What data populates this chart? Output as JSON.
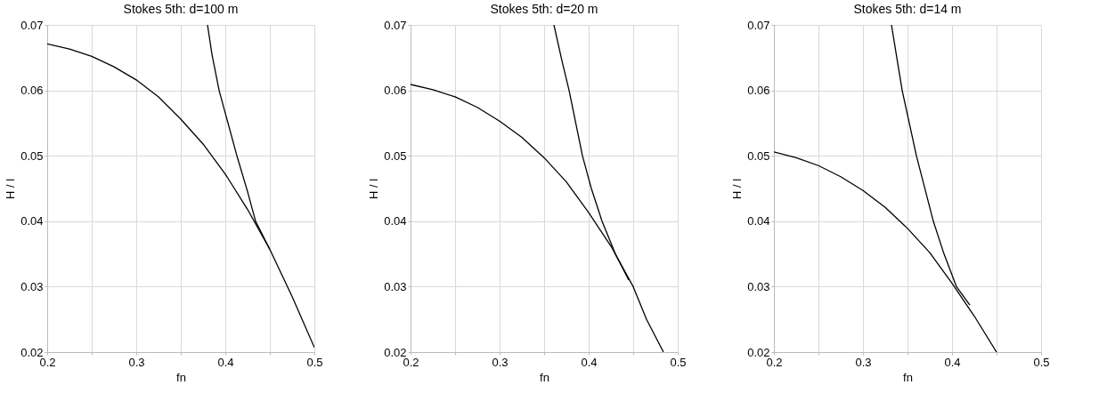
{
  "chart_data": [
    {
      "type": "line",
      "title": "Stokes 5th:  d=100 m",
      "xlabel": "fn",
      "ylabel": "H / l",
      "xlim": [
        0.2,
        0.5
      ],
      "ylim": [
        0.02,
        0.07
      ],
      "xticks": [
        0.2,
        {
          "value": 0.25,
          "label": null
        },
        0.3,
        {
          "value": 0.35,
          "label": null
        },
        0.4,
        {
          "value": 0.45,
          "label": null
        },
        0.5
      ],
      "yticks": [
        0.02,
        0.03,
        0.04,
        0.05,
        0.06,
        0.07
      ],
      "grid": true,
      "legend": false,
      "marker": "none",
      "line_style": "solid",
      "series": [
        {
          "color": "#000000",
          "x": [
            0.2,
            0.225,
            0.25,
            0.275,
            0.3,
            0.325,
            0.35,
            0.375,
            0.4,
            0.425,
            0.45,
            0.475,
            0.5
          ],
          "values": [
            0.0671,
            0.0663,
            0.0652,
            0.0636,
            0.0616,
            0.059,
            0.0556,
            0.0518,
            0.0472,
            0.0418,
            0.0357,
            0.0285,
            0.0207
          ]
        },
        {
          "color": "#000000",
          "x": [
            0.38,
            0.385,
            0.393,
            0.4,
            0.413,
            0.425,
            0.434,
            0.45
          ],
          "values": [
            0.07,
            0.0655,
            0.06,
            0.0565,
            0.05,
            0.0445,
            0.04,
            0.0357
          ]
        }
      ]
    },
    {
      "type": "line",
      "title": "Stokes 5th:  d=20 m",
      "xlabel": "fn",
      "ylabel": "H / l",
      "xlim": [
        0.2,
        0.5
      ],
      "ylim": [
        0.02,
        0.07
      ],
      "xticks": [
        0.2,
        {
          "value": 0.25,
          "label": null
        },
        0.3,
        {
          "value": 0.35,
          "label": null
        },
        0.4,
        {
          "value": 0.45,
          "label": null
        },
        0.5
      ],
      "yticks": [
        0.02,
        0.03,
        0.04,
        0.05,
        0.06,
        0.07
      ],
      "grid": true,
      "legend": false,
      "marker": "none",
      "line_style": "solid",
      "series": [
        {
          "color": "#000000",
          "x": [
            0.2,
            0.225,
            0.25,
            0.275,
            0.3,
            0.325,
            0.35,
            0.375,
            0.4,
            0.425,
            0.45,
            0.465,
            0.484
          ],
          "values": [
            0.0609,
            0.0601,
            0.059,
            0.0574,
            0.0553,
            0.0528,
            0.0497,
            0.046,
            0.0413,
            0.0362,
            0.03,
            0.025,
            0.02
          ]
        },
        {
          "color": "#000000",
          "x": [
            0.361,
            0.37,
            0.378,
            0.393,
            0.403,
            0.415,
            0.43,
            0.445
          ],
          "values": [
            0.07,
            0.0645,
            0.06,
            0.05,
            0.045,
            0.04,
            0.035,
            0.031
          ]
        }
      ]
    },
    {
      "type": "line",
      "title": "Stokes 5th:  d=14 m",
      "xlabel": "fn",
      "ylabel": "H / l",
      "xlim": [
        0.2,
        0.5
      ],
      "ylim": [
        0.02,
        0.07
      ],
      "xticks": [
        0.2,
        {
          "value": 0.25,
          "label": null
        },
        0.3,
        {
          "value": 0.35,
          "label": null
        },
        0.4,
        {
          "value": 0.45,
          "label": null
        },
        0.5
      ],
      "yticks": [
        0.02,
        0.03,
        0.04,
        0.05,
        0.06,
        0.07
      ],
      "grid": true,
      "legend": false,
      "marker": "none",
      "line_style": "solid",
      "series": [
        {
          "color": "#000000",
          "x": [
            0.2,
            0.225,
            0.25,
            0.275,
            0.3,
            0.325,
            0.35,
            0.375,
            0.4,
            0.425,
            0.45
          ],
          "values": [
            0.0506,
            0.0497,
            0.0485,
            0.0468,
            0.0447,
            0.0421,
            0.0389,
            0.0352,
            0.0305,
            0.0255,
            0.02
          ]
        },
        {
          "color": "#000000",
          "x": [
            0.332,
            0.338,
            0.344,
            0.36,
            0.379,
            0.391,
            0.405,
            0.42
          ],
          "values": [
            0.07,
            0.065,
            0.06,
            0.05,
            0.04,
            0.035,
            0.03,
            0.0272
          ]
        }
      ]
    }
  ]
}
